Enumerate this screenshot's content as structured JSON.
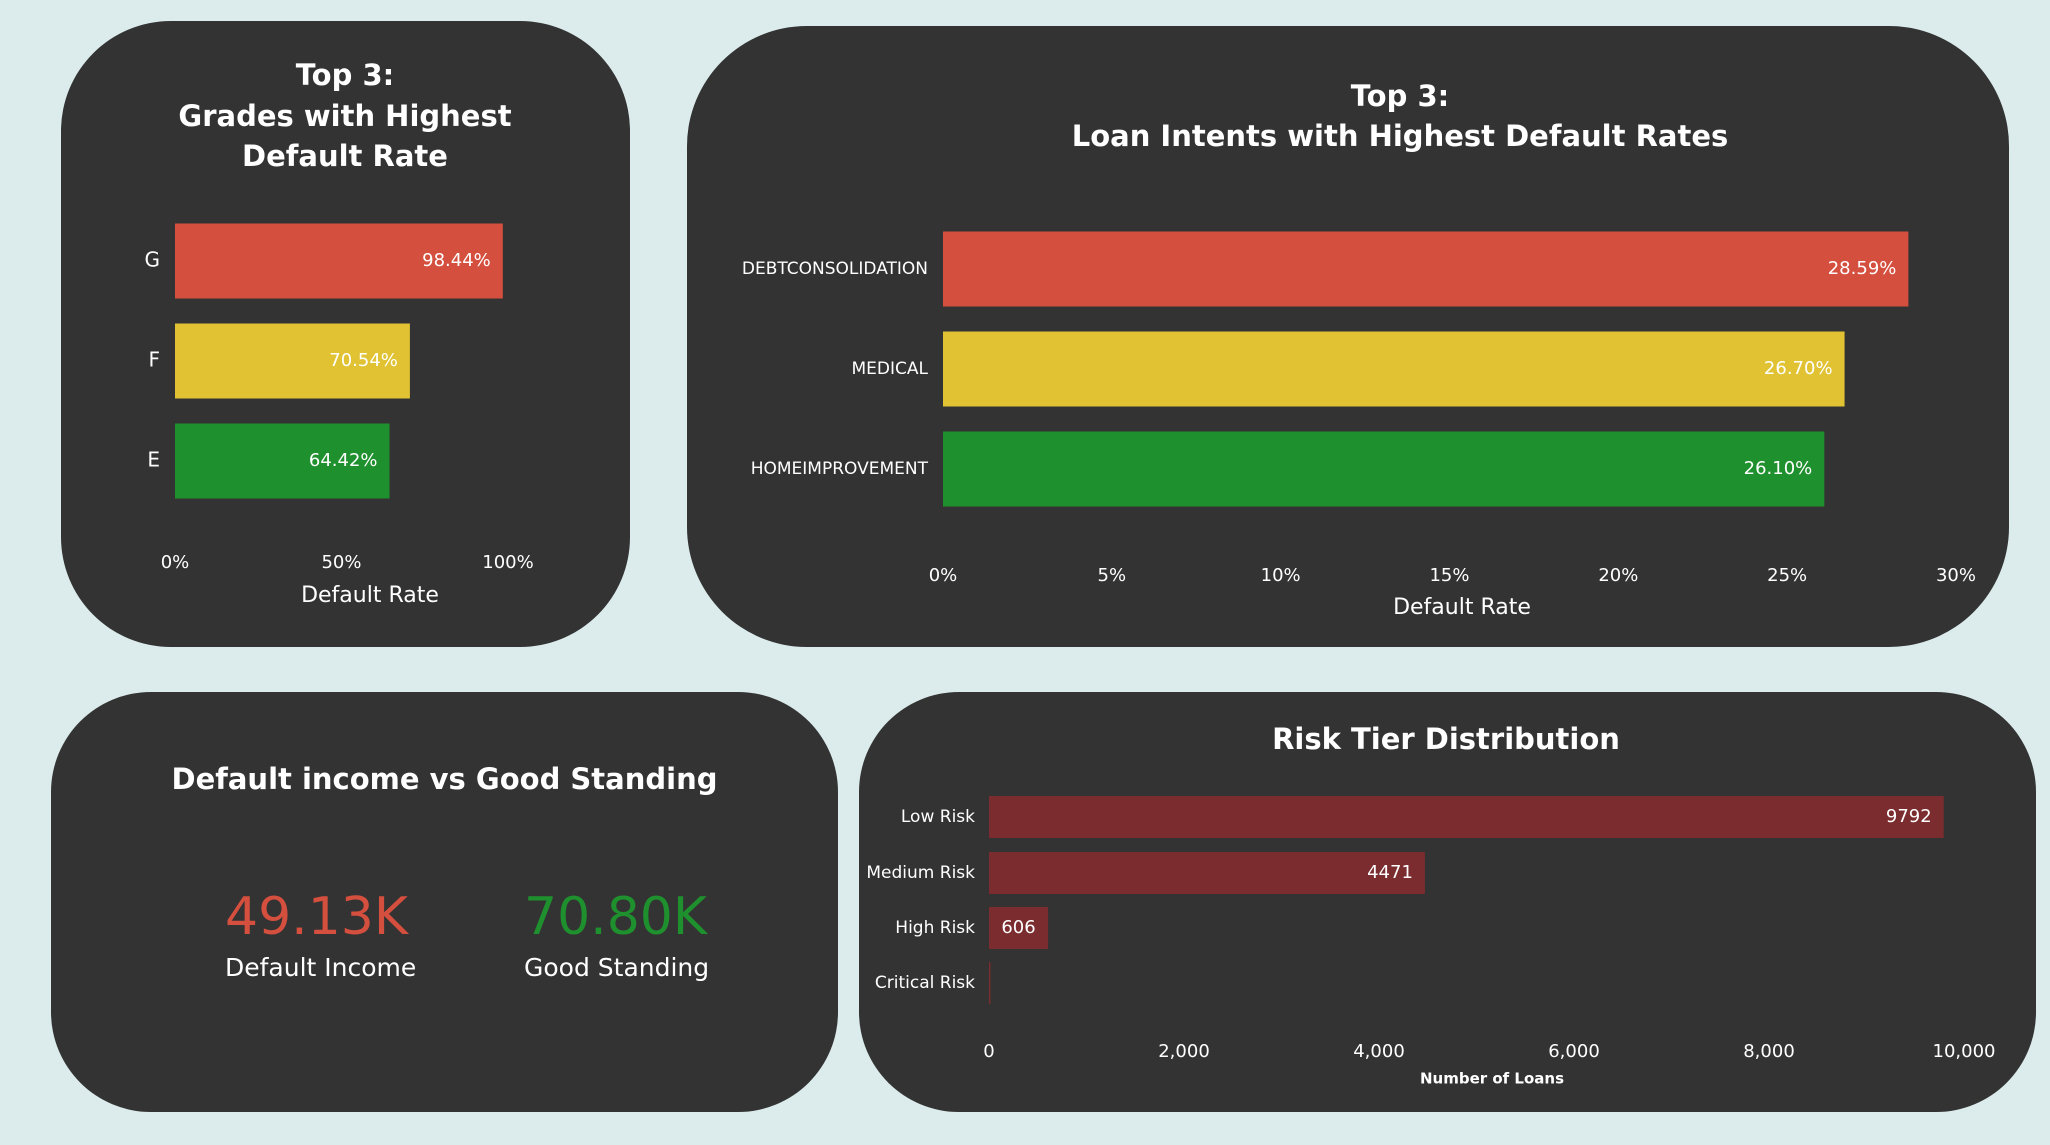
{
  "chart_data": [
    {
      "id": "grades",
      "type": "bar",
      "orientation": "horizontal",
      "title": [
        "Top 3:",
        "Grades with Highest",
        "Default Rate"
      ],
      "categories": [
        "G",
        "F",
        "E"
      ],
      "values": [
        98.44,
        70.54,
        64.42
      ],
      "data_labels": [
        "98.44%",
        "70.54%",
        "64.42%"
      ],
      "colors": [
        "#d44f3e",
        "#e0c233",
        "#1f902e"
      ],
      "xlim": [
        0,
        100
      ],
      "xticks": [
        "0%",
        "50%",
        "100%"
      ],
      "xlabel": "Default Rate",
      "ylabel": "",
      "grid": false
    },
    {
      "id": "intents",
      "type": "bar",
      "orientation": "horizontal",
      "title": [
        "Top 3:",
        "Loan Intents with Highest Default Rates"
      ],
      "categories": [
        "DEBTCONSOLIDATION",
        "MEDICAL",
        "HOMEIMPROVEMENT"
      ],
      "values": [
        28.59,
        26.7,
        26.1
      ],
      "data_labels": [
        "28.59%",
        "26.70%",
        "26.10%"
      ],
      "colors": [
        "#d44f3e",
        "#e0c233",
        "#1f902e"
      ],
      "xlim": [
        0,
        30
      ],
      "xticks": [
        "0%",
        "5%",
        "10%",
        "15%",
        "20%",
        "25%",
        "30%"
      ],
      "xlabel": "Default Rate",
      "ylabel": "",
      "grid": false
    },
    {
      "id": "risk",
      "type": "bar",
      "orientation": "horizontal",
      "title": [
        "Risk Tier Distribution"
      ],
      "categories": [
        "Low Risk",
        "Medium Risk",
        "High Risk",
        "Critical Risk"
      ],
      "values": [
        9792,
        4471,
        606,
        15
      ],
      "data_labels": [
        "9792",
        "4471",
        "606",
        ""
      ],
      "colors": [
        "#7a2c2e",
        "#7a2c2e",
        "#7a2c2e",
        "#7a2c2e"
      ],
      "xlim": [
        0,
        10000
      ],
      "xticks": [
        "0",
        "2,000",
        "4,000",
        "6,000",
        "8,000",
        "10,000"
      ],
      "xlabel": "Number of Loans",
      "ylabel": "",
      "grid": false
    }
  ],
  "kpi_card": {
    "title": "Default income vs Good Standing",
    "default_income": {
      "value": "49.13K",
      "label": "Default Income",
      "color": "#d44f3e"
    },
    "good_standing": {
      "value": "70.80K",
      "label": "Good Standing",
      "color": "#1f902e"
    }
  }
}
